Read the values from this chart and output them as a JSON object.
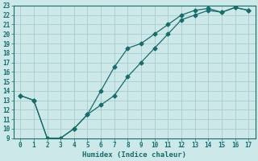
{
  "xlabel": "Humidex (Indice chaleur)",
  "background_color": "#cce8e8",
  "grid_color": "#aacccc",
  "line_color": "#1a6b6b",
  "xlim": [
    -0.5,
    17.5
  ],
  "ylim": [
    9,
    23
  ],
  "xticks": [
    0,
    1,
    2,
    3,
    4,
    5,
    6,
    7,
    8,
    9,
    10,
    11,
    12,
    13,
    14,
    15,
    16,
    17
  ],
  "yticks": [
    9,
    10,
    11,
    12,
    13,
    14,
    15,
    16,
    17,
    18,
    19,
    20,
    21,
    22,
    23
  ],
  "line1_x": [
    0,
    1,
    2,
    3,
    4,
    5,
    6,
    7,
    8,
    9,
    10,
    11,
    12,
    13,
    14,
    15,
    16,
    17
  ],
  "line1_y": [
    13.5,
    13.0,
    9.0,
    9.0,
    10.0,
    11.5,
    14.0,
    16.5,
    18.5,
    19.0,
    20.0,
    21.0,
    22.0,
    22.5,
    22.7,
    22.3,
    22.8,
    22.5
  ],
  "line2_x": [
    0,
    1,
    2,
    3,
    4,
    5,
    6,
    7,
    8,
    9,
    10,
    11,
    12,
    13,
    14,
    15,
    16,
    17
  ],
  "line2_y": [
    13.5,
    13.0,
    9.0,
    9.0,
    10.0,
    11.5,
    12.5,
    13.5,
    15.5,
    17.0,
    18.5,
    20.0,
    21.5,
    22.0,
    22.5,
    22.3,
    22.8,
    22.5
  ],
  "font_size_label": 6.5,
  "font_size_tick": 5.5,
  "marker_size": 2.5,
  "line_width": 0.9
}
